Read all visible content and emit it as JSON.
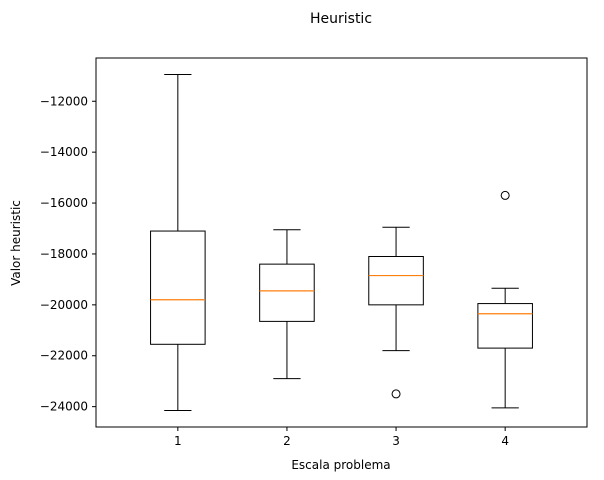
{
  "chart_data": {
    "type": "boxplot",
    "title": "Heuristic",
    "xlabel": "Escala problema",
    "ylabel": "Valor heuristic",
    "categories": [
      "1",
      "2",
      "3",
      "4"
    ],
    "ylim": [
      -24800,
      -10300
    ],
    "yticks": [
      -24000,
      -22000,
      -20000,
      -18000,
      -16000,
      -14000,
      -12000
    ],
    "ytick_labels": [
      "−24000",
      "−22000",
      "−20000",
      "−18000",
      "−16000",
      "−14000",
      "−12000"
    ],
    "grid": false,
    "boxes": [
      {
        "category": "1",
        "whisker_low": -24150,
        "q1": -21550,
        "median": -19800,
        "q3": -17100,
        "whisker_high": -10950,
        "outliers": []
      },
      {
        "category": "2",
        "whisker_low": -22900,
        "q1": -20650,
        "median": -19450,
        "q3": -18400,
        "whisker_high": -17050,
        "outliers": []
      },
      {
        "category": "3",
        "whisker_low": -21800,
        "q1": -20000,
        "median": -18850,
        "q3": -18100,
        "whisker_high": -16950,
        "outliers": [
          -23500
        ]
      },
      {
        "category": "4",
        "whisker_low": -24050,
        "q1": -21700,
        "median": -20350,
        "q3": -19950,
        "whisker_high": -19350,
        "outliers": [
          -15700
        ]
      }
    ],
    "colors": {
      "box": "#000000",
      "median": "#ff7f0e",
      "outlier": "#000000"
    }
  }
}
